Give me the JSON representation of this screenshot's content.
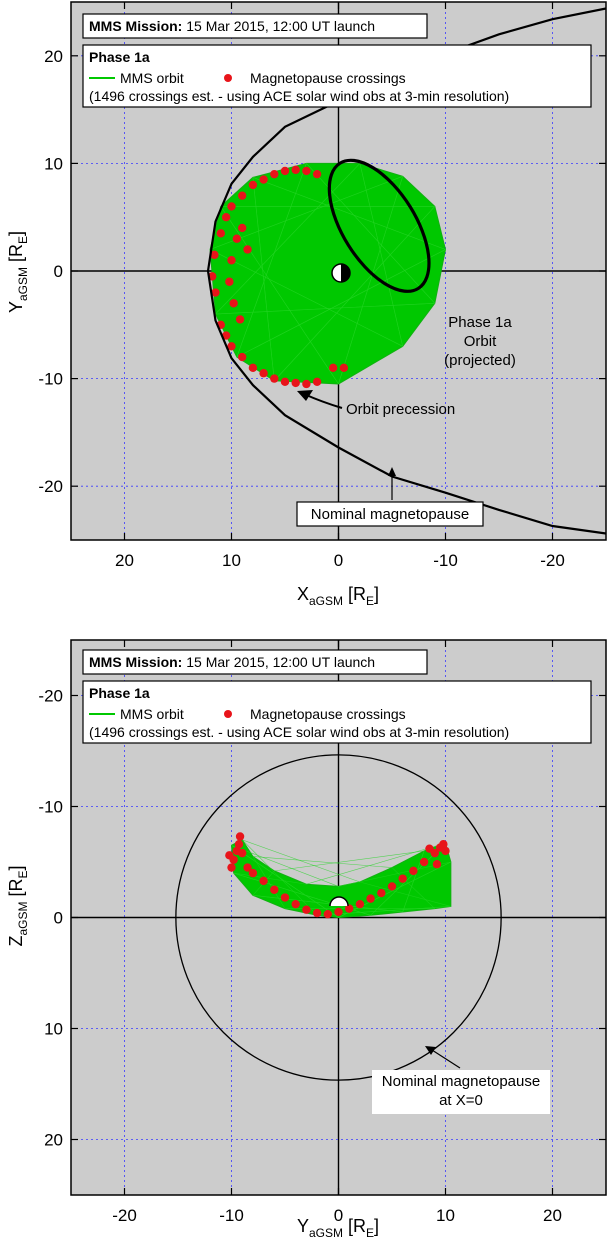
{
  "chart_data": [
    {
      "type": "scatter",
      "title_bold": "MMS Mission:",
      "title_rest": " 15 Mar 2015, 12:00 UT launch",
      "phase": "Phase 1a",
      "legend": [
        {
          "label": "MMS orbit",
          "color": "#00c800",
          "marker": "line"
        },
        {
          "label": "Magnetopause crossings",
          "color": "#e8141a",
          "marker": "dot"
        }
      ],
      "note": "(1496 crossings est. - using ACE solar wind obs at 3-min resolution)",
      "xlabel_main": "X",
      "xlabel_sub": "aGSM",
      "xlabel_unit_open": " [R",
      "xlabel_unit_sub": "E",
      "xlabel_unit_close": "]",
      "ylabel_main": "Y",
      "ylabel_sub": "aGSM",
      "ylabel_unit_open": " [R",
      "ylabel_unit_sub": "E",
      "ylabel_unit_close": "]",
      "xlim": [
        25,
        -25
      ],
      "ylim": [
        25,
        -25
      ],
      "x_ticks": [
        20,
        10,
        0,
        -10,
        -20
      ],
      "x_tick_labels": [
        "20",
        "10",
        "0",
        "-10",
        "-20"
      ],
      "y_ticks": [
        -20,
        -10,
        0,
        10,
        20
      ],
      "y_tick_labels": [
        "-20",
        "-10",
        "0",
        "10",
        "20"
      ],
      "grid": true,
      "annotations": {
        "orbit_line1": "Phase 1a",
        "orbit_line2": "Orbit",
        "orbit_line3": "(projected)",
        "precession": "Orbit precession",
        "magnetopause": "Nominal magnetopause"
      },
      "magnetopause_curve": [
        [
          -25,
          -24.4
        ],
        [
          -20,
          -23.7
        ],
        [
          -15,
          -22.2
        ],
        [
          -10,
          -20.6
        ],
        [
          -5,
          -19.1
        ],
        [
          0,
          -16.4
        ],
        [
          5,
          -13.4
        ],
        [
          8,
          -10.6
        ],
        [
          10,
          -8.1
        ],
        [
          11.5,
          -4.6
        ],
        [
          12.2,
          0
        ],
        [
          11.5,
          4.6
        ],
        [
          10,
          8.1
        ],
        [
          8,
          10.6
        ],
        [
          5,
          13.4
        ],
        [
          0,
          15.8
        ],
        [
          -5,
          18.1
        ],
        [
          -10,
          20.2
        ],
        [
          -15,
          22
        ],
        [
          -20,
          23.4
        ],
        [
          -25,
          24.4
        ]
      ],
      "orbit_ellipse": {
        "center": [
          -3.8,
          4.2
        ],
        "semi_axes": [
          3.4,
          6.9
        ],
        "tilt_deg": -32
      },
      "orbit_region_outline": [
        [
          6,
          -10.2
        ],
        [
          0,
          -10.5
        ],
        [
          -6,
          -7
        ],
        [
          -9,
          -3
        ],
        [
          -10,
          2
        ],
        [
          -9,
          6
        ],
        [
          -6,
          8.8
        ],
        [
          -2,
          10
        ],
        [
          3,
          10
        ],
        [
          8,
          8.7
        ],
        [
          11,
          6
        ],
        [
          12,
          2
        ],
        [
          11.5,
          -4
        ],
        [
          9.5,
          -8
        ]
      ],
      "crossings_sample": [
        [
          11.5,
          -2
        ],
        [
          11.8,
          -0.5
        ],
        [
          11.6,
          1.5
        ],
        [
          11,
          3.5
        ],
        [
          10.5,
          5
        ],
        [
          10,
          6
        ],
        [
          9,
          7
        ],
        [
          8,
          8
        ],
        [
          7,
          8.5
        ],
        [
          6,
          9
        ],
        [
          5,
          9.3
        ],
        [
          4,
          9.4
        ],
        [
          3,
          9.3
        ],
        [
          2,
          9
        ],
        [
          10,
          -7
        ],
        [
          9,
          -8
        ],
        [
          8,
          -9
        ],
        [
          7,
          -9.5
        ],
        [
          6,
          -10
        ],
        [
          5,
          -10.3
        ],
        [
          4,
          -10.4
        ],
        [
          3,
          -10.5
        ],
        [
          2,
          -10.3
        ],
        [
          0.5,
          -9
        ],
        [
          -0.5,
          -9
        ],
        [
          11,
          -5
        ],
        [
          10.5,
          -6
        ],
        [
          9.5,
          3
        ],
        [
          9,
          4
        ],
        [
          8.5,
          2
        ],
        [
          10,
          1
        ],
        [
          10.2,
          -1
        ],
        [
          9.8,
          -3
        ],
        [
          9.2,
          -4.5
        ]
      ]
    },
    {
      "type": "scatter",
      "title_bold": "MMS Mission:",
      "title_rest": " 15 Mar 2015, 12:00 UT launch",
      "phase": "Phase 1a",
      "legend": [
        {
          "label": "MMS orbit",
          "color": "#00c800",
          "marker": "line"
        },
        {
          "label": "Magnetopause crossings",
          "color": "#e8141a",
          "marker": "dot"
        }
      ],
      "note": "(1496 crossings est. - using ACE solar wind obs at 3-min resolution)",
      "xlabel_main": "Y",
      "xlabel_sub": "aGSM",
      "xlabel_unit_open": " [R",
      "xlabel_unit_sub": "E",
      "xlabel_unit_close": "]",
      "ylabel_main": "Z",
      "ylabel_sub": "aGSM",
      "ylabel_unit_open": " [R",
      "ylabel_unit_sub": "E",
      "ylabel_unit_close": "]",
      "xlim": [
        -25,
        25
      ],
      "ylim": [
        -25,
        25
      ],
      "x_ticks": [
        -20,
        -10,
        0,
        10,
        20
      ],
      "x_tick_labels": [
        "-20",
        "-10",
        "0",
        "10",
        "20"
      ],
      "y_ticks": [
        20,
        10,
        0,
        -10,
        -20
      ],
      "y_tick_labels": [
        "20",
        "10",
        "0",
        "-10",
        "-20"
      ],
      "grid": true,
      "annotations": {
        "magnetopause_line1": "Nominal magnetopause",
        "magnetopause_line2": "at X=0"
      },
      "magnetopause_circle": {
        "center": [
          0,
          0
        ],
        "radius": 15.2
      },
      "orbit_region_outline": [
        [
          -10,
          -6.5
        ],
        [
          -9.8,
          -4
        ],
        [
          -8,
          -2
        ],
        [
          -5,
          -0.8
        ],
        [
          -2,
          -0.2
        ],
        [
          0,
          0
        ],
        [
          3,
          -0.2
        ],
        [
          6,
          -0.5
        ],
        [
          9,
          -0.8
        ],
        [
          10.5,
          -1
        ],
        [
          10.5,
          -5
        ],
        [
          10,
          -6.7
        ],
        [
          8,
          -6
        ],
        [
          5,
          -4.5
        ],
        [
          2,
          -3.2
        ],
        [
          0,
          -2.8
        ],
        [
          -3,
          -3
        ],
        [
          -6,
          -4.2
        ],
        [
          -8,
          -5.5
        ],
        [
          -9,
          -7
        ]
      ],
      "crossings_sample": [
        [
          -10,
          -4.5
        ],
        [
          -9.8,
          -5.2
        ],
        [
          -9.5,
          -6
        ],
        [
          -9,
          -5.8
        ],
        [
          -8.5,
          -4.5
        ],
        [
          -8,
          -4
        ],
        [
          -7,
          -3.3
        ],
        [
          -6,
          -2.5
        ],
        [
          -5,
          -1.8
        ],
        [
          -4,
          -1.2
        ],
        [
          -3,
          -0.7
        ],
        [
          -2,
          -0.4
        ],
        [
          -1,
          -0.3
        ],
        [
          0,
          -0.5
        ],
        [
          1,
          -0.8
        ],
        [
          2,
          -1.2
        ],
        [
          3,
          -1.7
        ],
        [
          4,
          -2.2
        ],
        [
          5,
          -2.8
        ],
        [
          6,
          -3.5
        ],
        [
          7,
          -4.2
        ],
        [
          8,
          -5
        ],
        [
          9,
          -5.8
        ],
        [
          9.5,
          -6.3
        ],
        [
          9.8,
          -6.6
        ],
        [
          10,
          -6
        ],
        [
          -10.2,
          -5.6
        ],
        [
          -9.2,
          -7.3
        ],
        [
          -9.3,
          -6.6
        ],
        [
          8.5,
          -6.2
        ],
        [
          9.2,
          -4.8
        ]
      ]
    }
  ]
}
